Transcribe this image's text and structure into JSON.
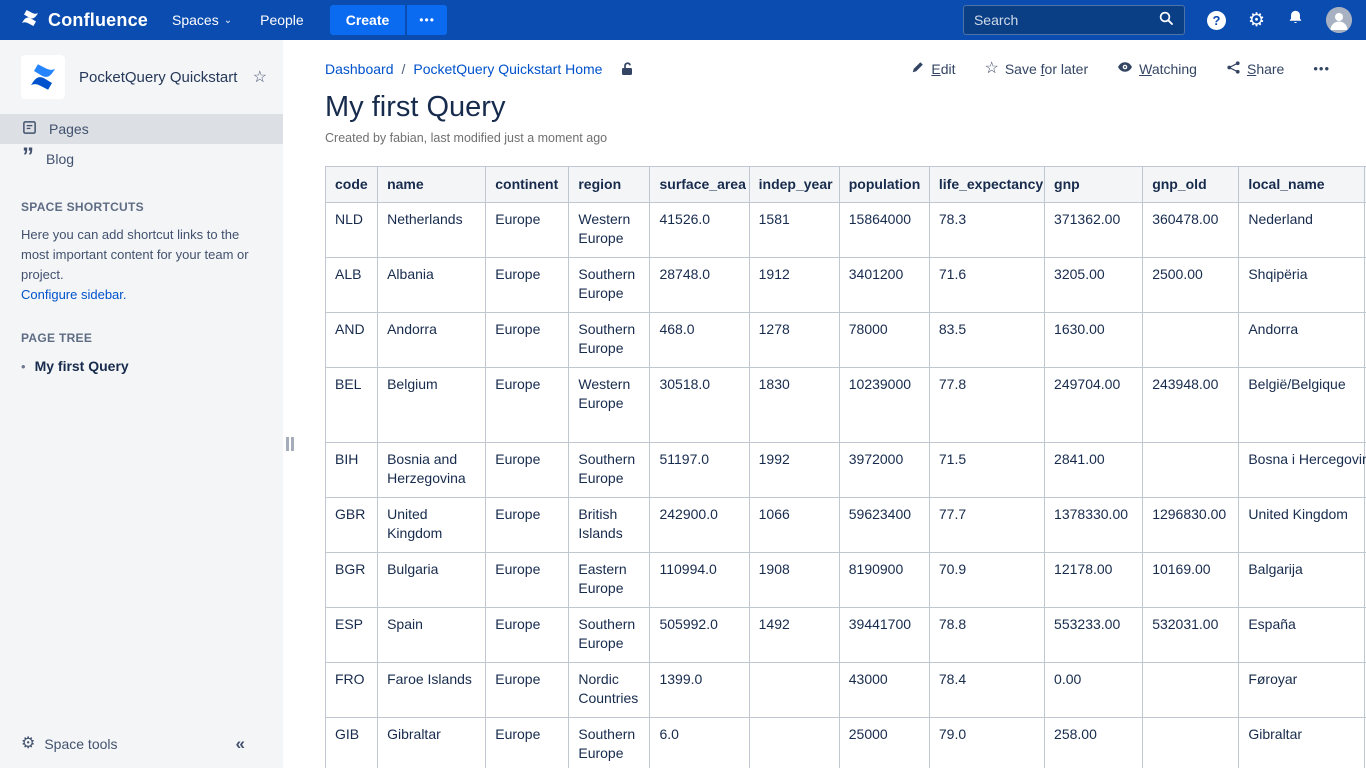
{
  "topbar": {
    "brand": "Confluence",
    "menus": [
      {
        "label": "Spaces",
        "chevron": "⌄"
      },
      {
        "label": "People"
      }
    ],
    "create_label": "Create",
    "more_label": "•••",
    "search_placeholder": "Search",
    "help_glyph": "?",
    "gear_glyph": "⚙",
    "colors": {
      "bar": "#0A4CAF",
      "button": "#0B6BF0",
      "link": "#0052CC"
    }
  },
  "sidebar": {
    "space_title": "PocketQuery Quickstart",
    "star_glyph": "☆",
    "nav": [
      {
        "label": "Pages",
        "selected": true
      },
      {
        "label": "Blog",
        "selected": false
      }
    ],
    "blog_quote_glyph": "”",
    "shortcuts_heading": "SPACE SHORTCUTS",
    "shortcuts_text": "Here you can add shortcut links to the most important content for your team or project.",
    "configure_link": "Configure sidebar.",
    "page_tree_heading": "PAGE TREE",
    "page_tree_bullet": "•",
    "page_tree_items": [
      "My first Query"
    ],
    "space_tools_gear": "⚙",
    "space_tools_label": "Space tools",
    "collapse_glyph": "«"
  },
  "content": {
    "breadcrumb": [
      "Dashboard",
      "PocketQuery Quickstart Home"
    ],
    "breadcrumb_separator": "/",
    "actions": [
      {
        "pre": "",
        "u": "E",
        "post": "dit"
      },
      {
        "pre": "Save ",
        "u": "f",
        "post": "or later"
      },
      {
        "pre": "",
        "u": "W",
        "post": "atching"
      },
      {
        "pre": "",
        "u": "S",
        "post": "hare"
      }
    ],
    "save_star_glyph": "☆",
    "more_label": "•••",
    "title": "My first Query",
    "byline": "Created by fabian, last modified just a moment ago"
  },
  "table": {
    "headers": [
      "code",
      "name",
      "continent",
      "region",
      "surface_area",
      "indep_year",
      "population",
      "life_expectancy",
      "gnp",
      "gnp_old",
      "local_name",
      ""
    ],
    "rows": [
      [
        "NLD",
        "Netherlands",
        "Europe",
        "Western Europe",
        "41526.0",
        "1581",
        "15864000",
        "78.3",
        "371362.00",
        "360478.00",
        "Nederland",
        ""
      ],
      [
        "ALB",
        "Albania",
        "Europe",
        "Southern Europe",
        "28748.0",
        "1912",
        "3401200",
        "71.6",
        "3205.00",
        "2500.00",
        "Shqipëria",
        ""
      ],
      [
        "AND",
        "Andorra",
        "Europe",
        "Southern Europe",
        "468.0",
        "1278",
        "78000",
        "83.5",
        "1630.00",
        "",
        "Andorra",
        ""
      ],
      [
        "BEL",
        "Belgium",
        "Europe",
        "Western Europe",
        "30518.0",
        "1830",
        "10239000",
        "77.8",
        "249704.00",
        "243948.00",
        "België/Belgique",
        ""
      ],
      [
        "BIH",
        "Bosnia and Herzegovina",
        "Europe",
        "Southern Europe",
        "51197.0",
        "1992",
        "3972000",
        "71.5",
        "2841.00",
        "",
        "Bosna i Hercegovina",
        ""
      ],
      [
        "GBR",
        "United Kingdom",
        "Europe",
        "British Islands",
        "242900.0",
        "1066",
        "59623400",
        "77.7",
        "1378330.00",
        "1296830.00",
        "United Kingdom",
        ""
      ],
      [
        "BGR",
        "Bulgaria",
        "Europe",
        "Eastern Europe",
        "110994.0",
        "1908",
        "8190900",
        "70.9",
        "12178.00",
        "10169.00",
        "Balgarija",
        ""
      ],
      [
        "ESP",
        "Spain",
        "Europe",
        "Southern Europe",
        "505992.0",
        "1492",
        "39441700",
        "78.8",
        "553233.00",
        "532031.00",
        "España",
        ""
      ],
      [
        "FRO",
        "Faroe Islands",
        "Europe",
        "Nordic Countries",
        "1399.0",
        "",
        "43000",
        "78.4",
        "0.00",
        "",
        "Føroyar",
        ""
      ],
      [
        "GIB",
        "Gibraltar",
        "Europe",
        "Southern Europe",
        "6.0",
        "",
        "25000",
        "79.0",
        "258.00",
        "",
        "Gibraltar",
        ""
      ]
    ]
  }
}
